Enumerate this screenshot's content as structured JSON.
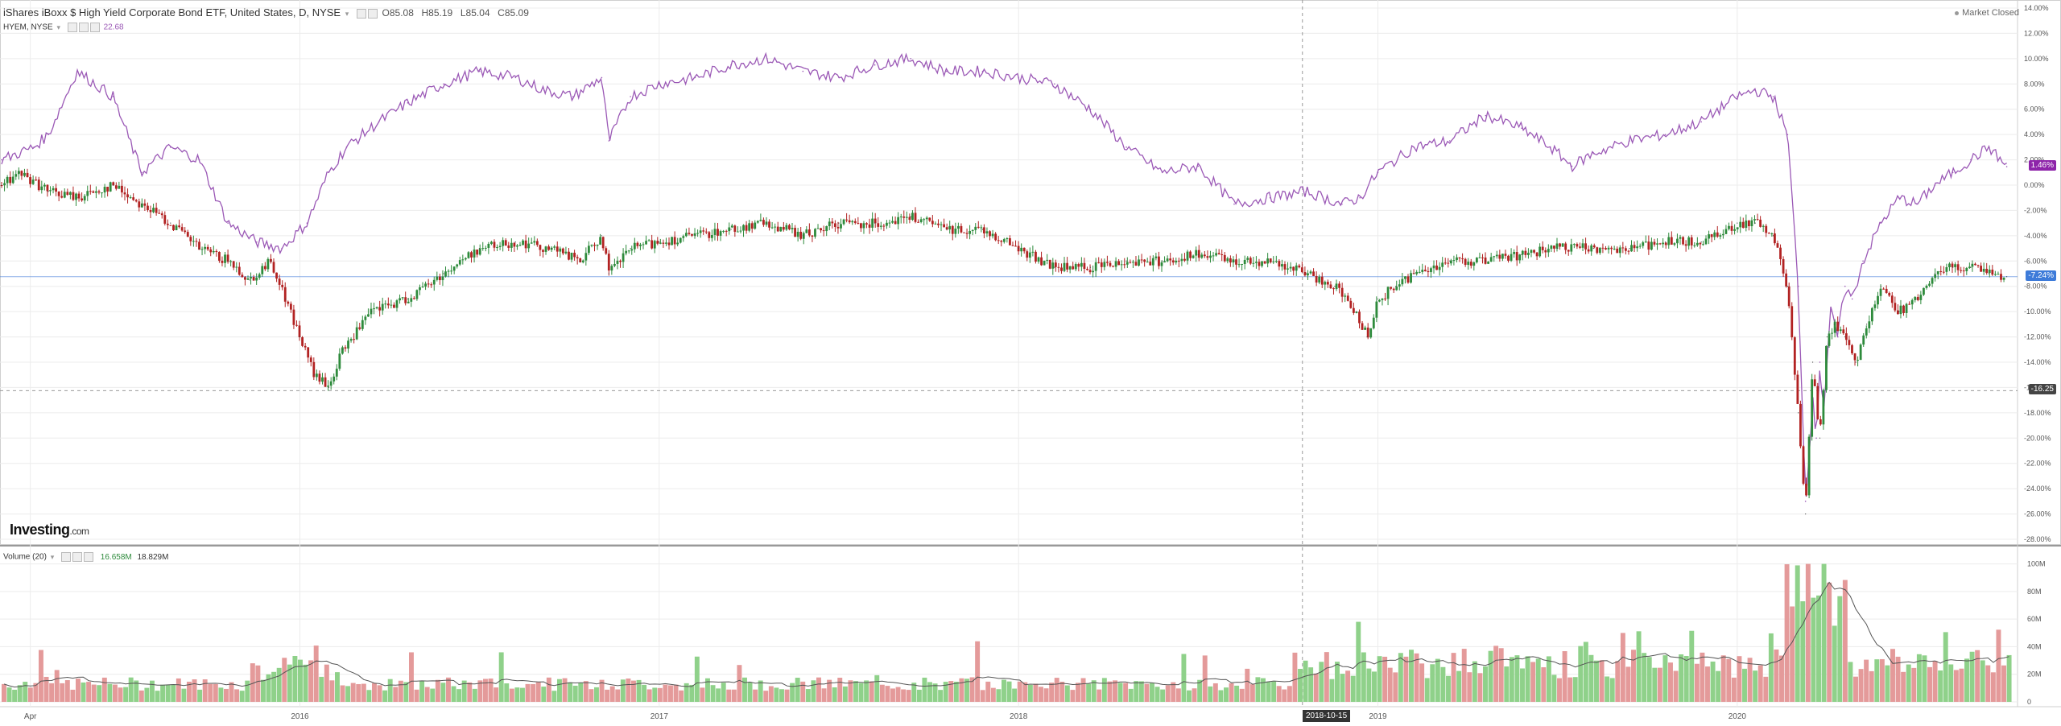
{
  "header": {
    "title": "iShares iBoxx $ High Yield Corporate Bond ETF, United States, D, NYSE",
    "ohlc": [
      {
        "label": "O",
        "value": "85.08"
      },
      {
        "label": "H",
        "value": "85.19"
      },
      {
        "label": "L",
        "value": "85.04"
      },
      {
        "label": "C",
        "value": "85.09"
      }
    ],
    "comparison_label": "HYEM, NYSE",
    "comparison_value": "22.68",
    "status": "Market Closed"
  },
  "volume_legend": {
    "label": "Volume (20)",
    "value1": "16.658M",
    "value2": "18.829M"
  },
  "logo": {
    "main": "Investing",
    "suffix": ".com"
  },
  "price_tags": {
    "purple": "1.46%",
    "blue": "-7.24%",
    "crosshair": "-16.25"
  },
  "crosshair_date": "2018-10-15",
  "colors": {
    "purple": "#9b59b6",
    "up": "#2e8b3c",
    "down": "#b22222",
    "vol_up": "#8fd18a",
    "vol_down": "#e49a9a",
    "blue": "#3d7bd9",
    "grid": "#ececec"
  },
  "chart_data": {
    "type": "line",
    "xaxis_labels": [
      "Apr",
      "2016",
      "2017",
      "2018",
      "2019",
      "2020"
    ],
    "y_ticks": [
      "14.00%",
      "12.00%",
      "10.00%",
      "8.00%",
      "6.00%",
      "4.00%",
      "2.00%",
      "0.00%",
      "-2.00%",
      "-4.00%",
      "-6.00%",
      "-8.00%",
      "-10.00%",
      "-12.00%",
      "-14.00%",
      "-16.00%",
      "-18.00%",
      "-20.00%",
      "-22.00%",
      "-24.00%",
      "-26.00%",
      "-28.00%"
    ],
    "ylim": [
      -28,
      14
    ],
    "volume_ticks": [
      "100M",
      "80M",
      "60M",
      "40M",
      "20M",
      "0"
    ],
    "volume_ylim": [
      0,
      105
    ],
    "series": [
      {
        "name": "HYEM, NYSE",
        "style": "line",
        "x": [
          2015.17,
          2015.26,
          2015.3,
          2015.38,
          2015.48,
          2015.56,
          2015.64,
          2015.72,
          2015.8,
          2015.88,
          2015.95,
          2016.02,
          2016.08,
          2016.13,
          2016.22,
          2016.3,
          2016.4,
          2016.5,
          2016.6,
          2016.68,
          2016.76,
          2016.84,
          2016.86,
          2016.92,
          2017.0,
          2017.1,
          2017.2,
          2017.3,
          2017.4,
          2017.5,
          2017.6,
          2017.7,
          2017.8,
          2017.9,
          2018.0,
          2018.1,
          2018.2,
          2018.3,
          2018.4,
          2018.5,
          2018.6,
          2018.7,
          2018.8,
          2018.9,
          2018.95,
          2019.0,
          2019.1,
          2019.2,
          2019.3,
          2019.4,
          2019.48,
          2019.54,
          2019.6,
          2019.7,
          2019.8,
          2019.9,
          2020.0,
          2020.05,
          2020.1,
          2020.14,
          2020.17,
          2020.19,
          2020.21,
          2020.22,
          2020.23,
          2020.24,
          2020.26,
          2020.28,
          2020.3,
          2020.32,
          2020.35,
          2020.4,
          2020.45,
          2020.5,
          2020.55,
          2020.6,
          2020.65,
          2020.7,
          2020.75
        ],
        "values": [
          2.0,
          3.0,
          4.0,
          9.0,
          7.0,
          1.0,
          3.0,
          2.0,
          -3.0,
          -4.5,
          -5.0,
          -3.0,
          1.0,
          3.0,
          5.0,
          6.5,
          8.0,
          9.0,
          8.5,
          7.5,
          7.0,
          8.5,
          3.5,
          7.0,
          8.0,
          8.5,
          9.5,
          10.0,
          9.0,
          8.5,
          9.5,
          10.0,
          9.0,
          9.0,
          8.5,
          8.0,
          6.0,
          3.0,
          1.0,
          1.5,
          -1.5,
          -1.0,
          -0.5,
          -1.5,
          -1.0,
          1.0,
          3.0,
          3.5,
          5.5,
          4.5,
          3.0,
          1.5,
          2.5,
          3.5,
          4.0,
          5.0,
          7.0,
          7.5,
          7.0,
          4.0,
          -8.0,
          -25.0,
          -17.0,
          -20.0,
          -14.0,
          -18.0,
          -10.0,
          -12.0,
          -8.0,
          -9.0,
          -6.0,
          -3.0,
          -1.0,
          -1.5,
          0.0,
          1.0,
          2.0,
          3.0,
          1.46
        ]
      },
      {
        "name": "iShares iBoxx $ High Yield Corporate Bond ETF",
        "style": "candlestick",
        "x": [
          2015.17,
          2015.22,
          2015.3,
          2015.38,
          2015.48,
          2015.56,
          2015.64,
          2015.72,
          2015.8,
          2015.86,
          2015.92,
          2015.96,
          2016.0,
          2016.04,
          2016.08,
          2016.12,
          2016.2,
          2016.3,
          2016.4,
          2016.5,
          2016.6,
          2016.7,
          2016.78,
          2016.84,
          2016.86,
          2016.92,
          2017.0,
          2017.1,
          2017.2,
          2017.3,
          2017.4,
          2017.5,
          2017.6,
          2017.7,
          2017.8,
          2017.9,
          2018.0,
          2018.1,
          2018.2,
          2018.3,
          2018.4,
          2018.5,
          2018.6,
          2018.7,
          2018.8,
          2018.88,
          2018.94,
          2018.97,
          2019.0,
          2019.05,
          2019.1,
          2019.2,
          2019.3,
          2019.4,
          2019.5,
          2019.6,
          2019.7,
          2019.8,
          2019.9,
          2020.0,
          2020.05,
          2020.1,
          2020.14,
          2020.17,
          2020.19,
          2020.21,
          2020.23,
          2020.25,
          2020.27,
          2020.3,
          2020.33,
          2020.36,
          2020.4,
          2020.45,
          2020.5,
          2020.55,
          2020.6,
          2020.65,
          2020.7,
          2020.75
        ],
        "values": [
          0.0,
          1.0,
          -0.5,
          -1.0,
          0.0,
          -1.5,
          -3.0,
          -5.0,
          -6.0,
          -7.5,
          -6.0,
          -9.0,
          -12.0,
          -15.0,
          -16.0,
          -13.0,
          -10.0,
          -9.0,
          -7.0,
          -5.0,
          -4.5,
          -5.0,
          -6.0,
          -4.0,
          -7.0,
          -5.0,
          -4.5,
          -4.0,
          -3.5,
          -3.0,
          -4.0,
          -3.0,
          -3.0,
          -2.5,
          -3.5,
          -3.5,
          -5.0,
          -6.5,
          -6.5,
          -6.0,
          -6.0,
          -5.5,
          -6.0,
          -6.0,
          -7.0,
          -8.0,
          -10.0,
          -12.0,
          -9.0,
          -8.0,
          -7.0,
          -6.0,
          -6.0,
          -5.5,
          -5.0,
          -5.0,
          -5.0,
          -4.5,
          -4.5,
          -3.0,
          -3.0,
          -4.0,
          -8.0,
          -18.0,
          -26.0,
          -14.0,
          -20.0,
          -12.0,
          -11.0,
          -12.0,
          -14.0,
          -11.0,
          -8.0,
          -10.0,
          -9.0,
          -7.0,
          -6.5,
          -6.5,
          -7.0,
          -7.24
        ]
      }
    ]
  }
}
